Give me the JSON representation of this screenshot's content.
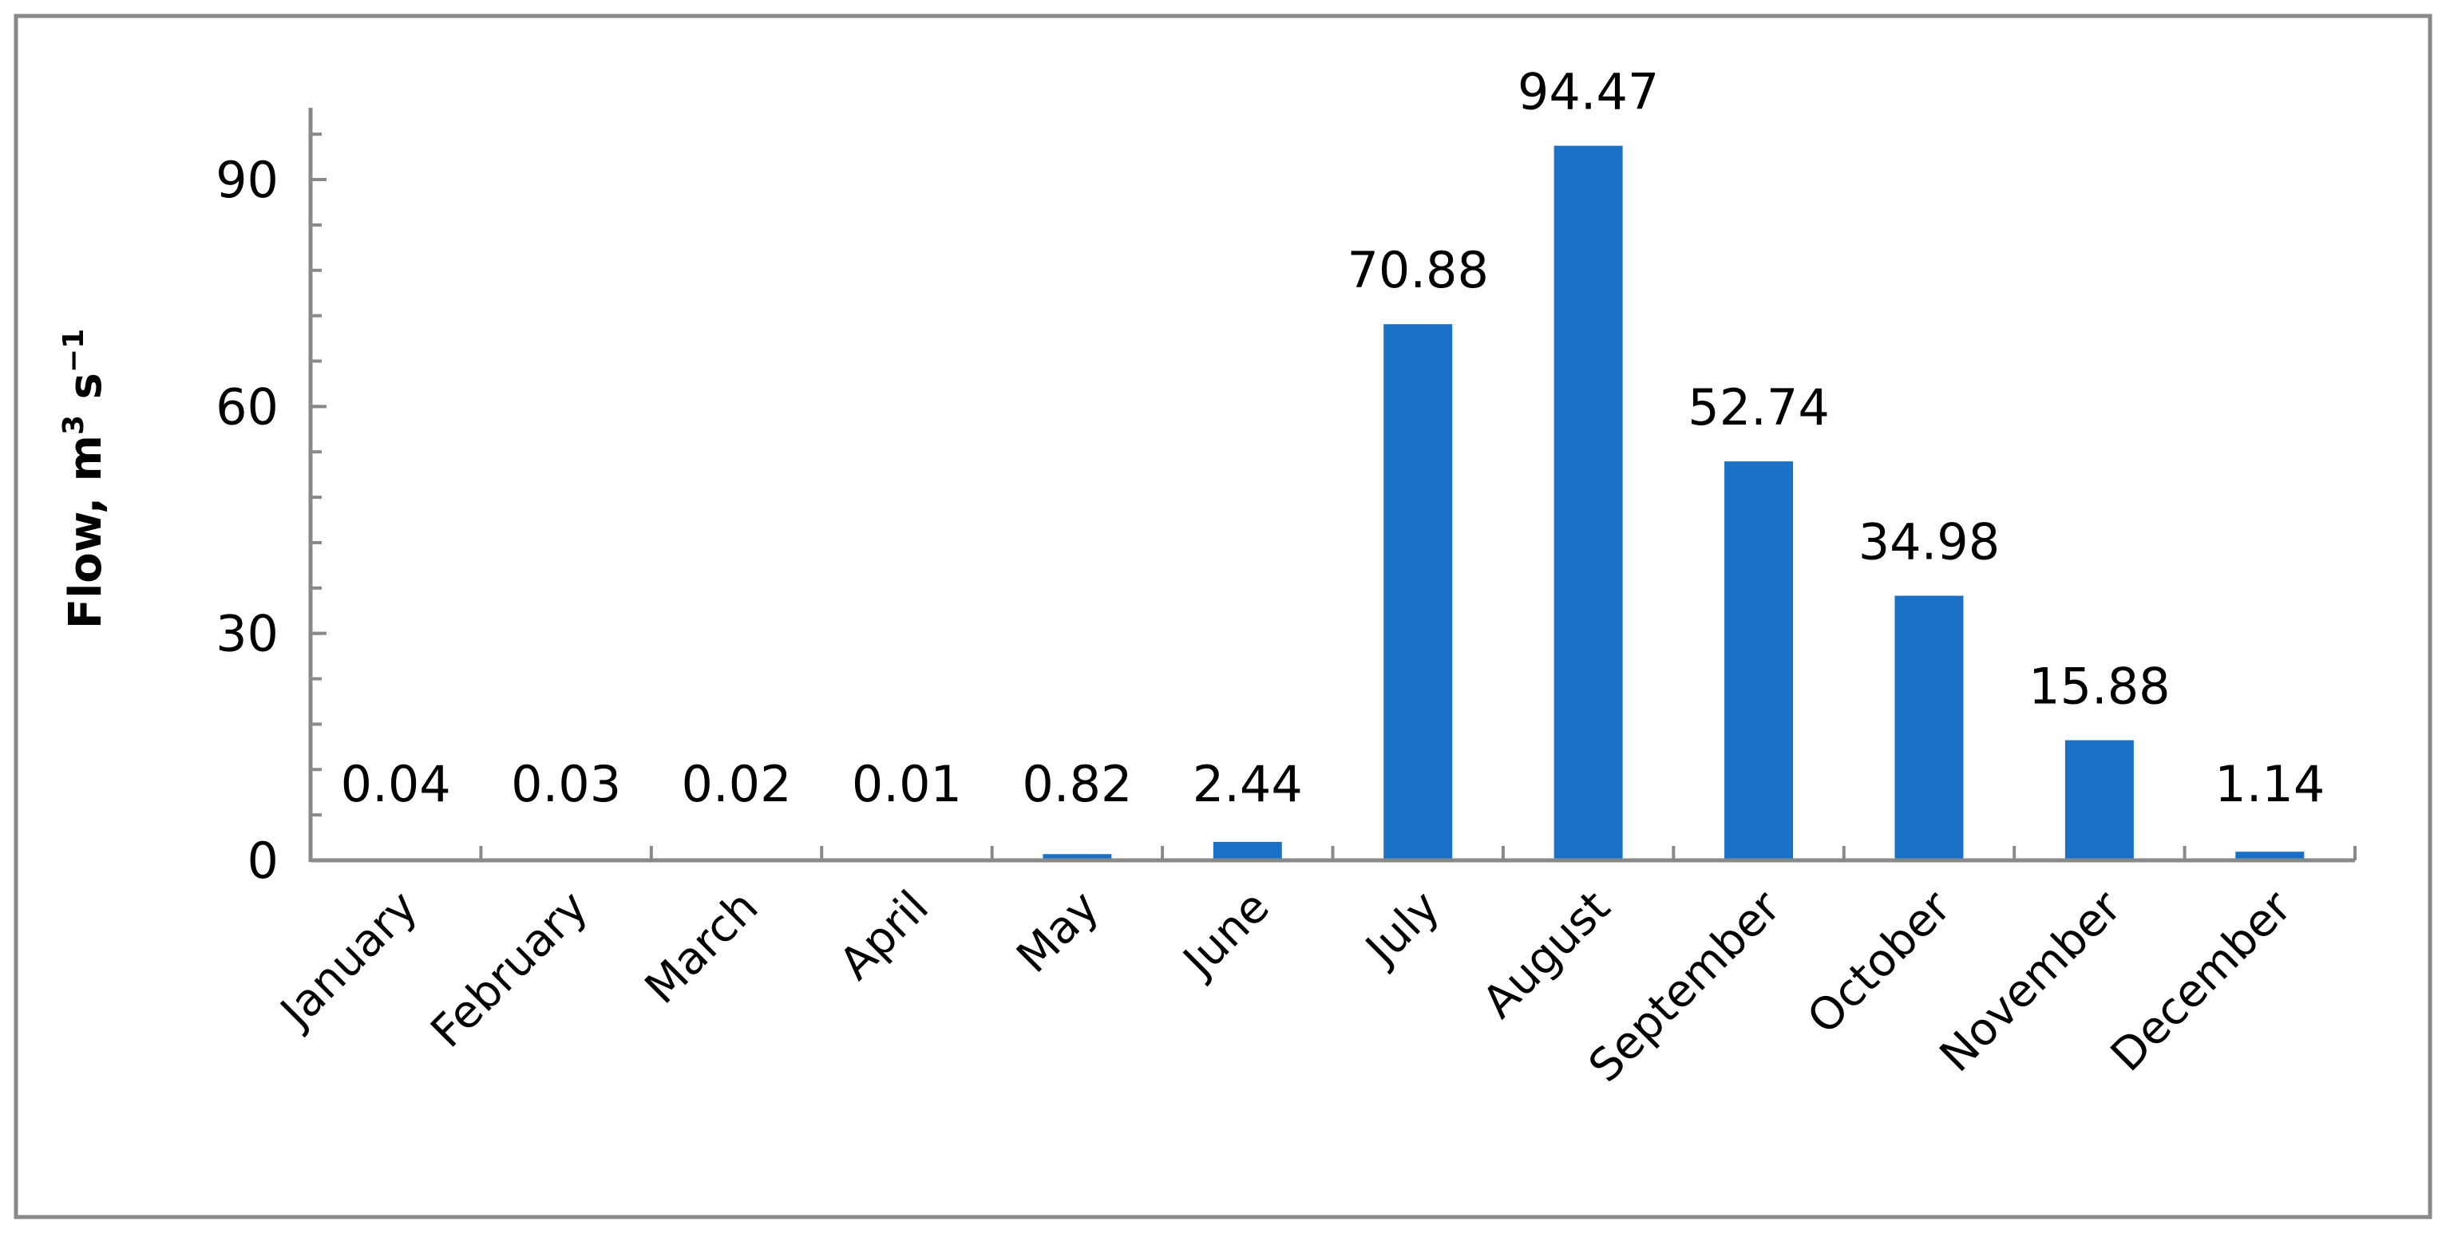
{
  "chart_data": {
    "type": "bar",
    "categories": [
      "January",
      "February",
      "March",
      "April",
      "May",
      "June",
      "July",
      "August",
      "September",
      "October",
      "November",
      "December"
    ],
    "values": [
      0.04,
      0.03,
      0.02,
      0.01,
      0.82,
      2.44,
      70.88,
      94.47,
      52.74,
      34.98,
      15.88,
      1.14
    ],
    "data_labels": [
      "0.04",
      "0.03",
      "0.02",
      "0.01",
      "0.82",
      "2.44",
      "70.88",
      "94.47",
      "52.74",
      "34.98",
      "15.88",
      "1.14"
    ],
    "title": "",
    "xlabel": "",
    "ylabel": "Flow, m",
    "ylabel_sup1": "3",
    "ylabel_mid": " s",
    "ylabel_sup2": "−1",
    "ylim": [
      0,
      100
    ],
    "yticks": [
      "0",
      "30",
      "60",
      "90"
    ],
    "grid": false,
    "bar_color": "#1a72c8",
    "axis_color": "#898989"
  }
}
